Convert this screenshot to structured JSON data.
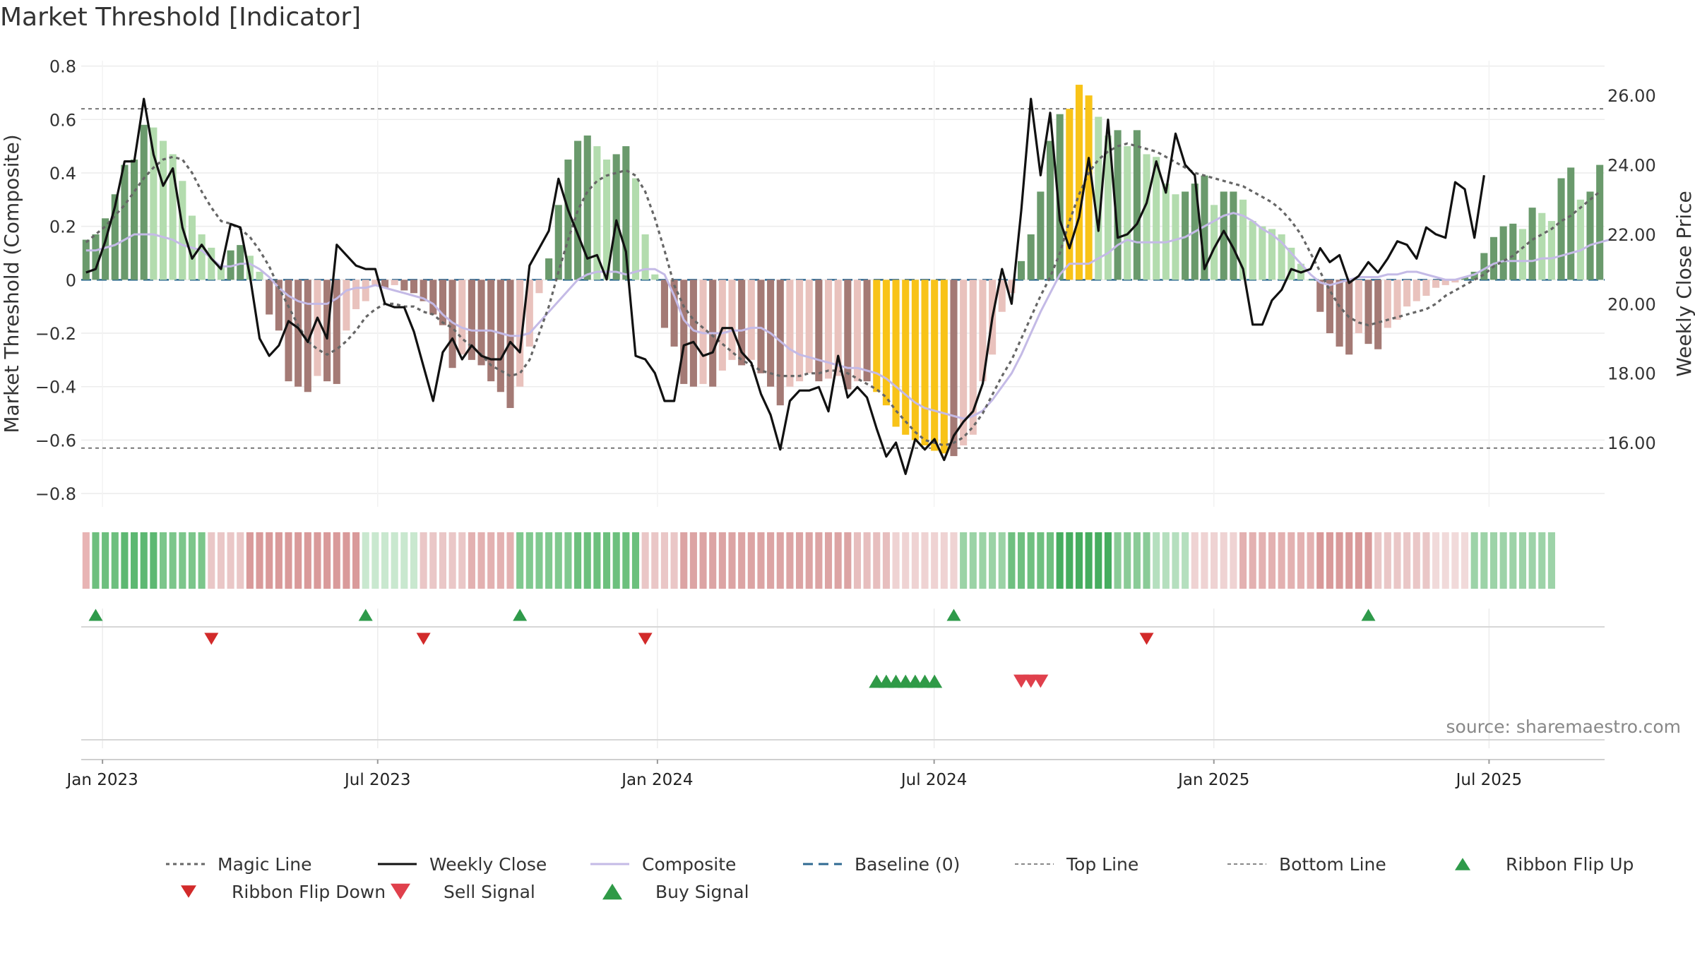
{
  "chart_data": {
    "type": "bar",
    "title": "Market Threshold [Indicator]",
    "ylabel_left": "Market Threshold (Composite)",
    "ylabel_right": "Weekly Close Price",
    "xlabel": "",
    "ylim_left": [
      -0.85,
      0.82
    ],
    "ylim_right": [
      14.15,
      27.0
    ],
    "yticks_left": [
      0.8,
      0.6,
      0.4,
      0.2,
      0,
      -0.2,
      -0.4,
      -0.6,
      -0.8
    ],
    "yticks_left_labels": [
      "0.8",
      "0.6",
      "0.4",
      "0.2",
      "0",
      "−0.2",
      "−0.4",
      "−0.6",
      "−0.8"
    ],
    "yticks_right": [
      26,
      24,
      22,
      20,
      18,
      16
    ],
    "yticks_right_labels": [
      "26.00",
      "24.00",
      "22.00",
      "20.00",
      "18.00",
      "16.00"
    ],
    "x_axis": {
      "start": "2022-12-18",
      "end": "2025-09-15"
    },
    "x_ticks": [
      {
        "date": "2023-01-01",
        "label": "Jan 2023"
      },
      {
        "date": "2023-07-01",
        "label": "Jul 2023"
      },
      {
        "date": "2024-01-01",
        "label": "Jan 2024"
      },
      {
        "date": "2024-07-01",
        "label": "Jul 2024"
      },
      {
        "date": "2025-01-01",
        "label": "Jan 2025"
      },
      {
        "date": "2025-07-01",
        "label": "Jul 2025"
      }
    ],
    "grid": true,
    "top_line": 0.64,
    "bottom_line": -0.63,
    "composite_bars": [
      0.15,
      0.17,
      0.23,
      0.32,
      0.43,
      0.45,
      0.58,
      0.57,
      0.52,
      0.47,
      0.37,
      0.24,
      0.17,
      0.12,
      0.05,
      0.11,
      0.13,
      0.09,
      0.03,
      -0.13,
      -0.19,
      -0.38,
      -0.4,
      -0.42,
      -0.36,
      -0.38,
      -0.39,
      -0.19,
      -0.11,
      -0.08,
      -0.02,
      -0.03,
      -0.02,
      -0.04,
      -0.05,
      -0.08,
      -0.13,
      -0.17,
      -0.33,
      -0.28,
      -0.3,
      -0.32,
      -0.38,
      -0.42,
      -0.48,
      -0.4,
      -0.25,
      -0.05,
      0.08,
      0.28,
      0.45,
      0.52,
      0.54,
      0.5,
      0.45,
      0.47,
      0.5,
      0.38,
      0.17,
      0.02,
      -0.18,
      -0.25,
      -0.39,
      -0.4,
      -0.39,
      -0.4,
      -0.34,
      -0.3,
      -0.32,
      -0.3,
      -0.35,
      -0.4,
      -0.47,
      -0.4,
      -0.38,
      -0.35,
      -0.38,
      -0.37,
      -0.36,
      -0.41,
      -0.38,
      -0.38,
      -0.42,
      -0.47,
      -0.55,
      -0.58,
      -0.6,
      -0.62,
      -0.64,
      -0.65,
      -0.66,
      -0.62,
      -0.58,
      -0.38,
      -0.28,
      -0.12,
      -0.05,
      0.07,
      0.17,
      0.33,
      0.52,
      0.62,
      0.64,
      0.73,
      0.69,
      0.61,
      0.54,
      0.56,
      0.5,
      0.56,
      0.47,
      0.46,
      0.36,
      0.32,
      0.33,
      0.36,
      0.39,
      0.28,
      0.33,
      0.33,
      0.3,
      0.22,
      0.2,
      0.19,
      0.17,
      0.12,
      0.06,
      0,
      -0.12,
      -0.2,
      -0.25,
      -0.28,
      -0.2,
      -0.24,
      -0.26,
      -0.18,
      -0.15,
      -0.1,
      -0.08,
      -0.06,
      -0.03,
      -0.02,
      -0.01,
      0.01,
      0.03,
      0.1,
      0.16,
      0.2,
      0.21,
      0.19,
      0.27,
      0.25,
      0.22,
      0.38,
      0.42,
      0.3,
      0.33,
      0.43
    ],
    "bar_highlights": [
      {
        "from": 82,
        "to": 89
      },
      {
        "from": 102,
        "to": 104
      }
    ],
    "series": [
      {
        "name": "Magic Line",
        "values": [
          0.14,
          0.17,
          0.2,
          0.24,
          0.28,
          0.33,
          0.38,
          0.42,
          0.45,
          0.46,
          0.45,
          0.4,
          0.33,
          0.27,
          0.22,
          0.21,
          0.19,
          0.16,
          0.11,
          0.05,
          -0.03,
          -0.1,
          -0.17,
          -0.23,
          -0.26,
          -0.28,
          -0.26,
          -0.23,
          -0.19,
          -0.14,
          -0.11,
          -0.09,
          -0.09,
          -0.1,
          -0.1,
          -0.12,
          -0.13,
          -0.16,
          -0.18,
          -0.22,
          -0.25,
          -0.28,
          -0.32,
          -0.34,
          -0.36,
          -0.35,
          -0.3,
          -0.2,
          -0.1,
          0.03,
          0.15,
          0.26,
          0.33,
          0.37,
          0.39,
          0.4,
          0.41,
          0.39,
          0.33,
          0.23,
          0.11,
          -0.02,
          -0.1,
          -0.15,
          -0.18,
          -0.21,
          -0.24,
          -0.27,
          -0.3,
          -0.32,
          -0.34,
          -0.35,
          -0.36,
          -0.36,
          -0.36,
          -0.35,
          -0.35,
          -0.34,
          -0.34,
          -0.35,
          -0.37,
          -0.39,
          -0.41,
          -0.44,
          -0.49,
          -0.53,
          -0.57,
          -0.6,
          -0.61,
          -0.62,
          -0.61,
          -0.59,
          -0.55,
          -0.5,
          -0.43,
          -0.36,
          -0.3,
          -0.22,
          -0.14,
          -0.06,
          0.01,
          0.1,
          0.22,
          0.32,
          0.4,
          0.45,
          0.48,
          0.5,
          0.51,
          0.5,
          0.49,
          0.48,
          0.46,
          0.44,
          0.42,
          0.4,
          0.39,
          0.38,
          0.37,
          0.36,
          0.35,
          0.33,
          0.31,
          0.29,
          0.26,
          0.22,
          0.17,
          0.1,
          0.03,
          -0.04,
          -0.1,
          -0.14,
          -0.16,
          -0.17,
          -0.16,
          -0.15,
          -0.14,
          -0.13,
          -0.12,
          -0.11,
          -0.09,
          -0.06,
          -0.04,
          -0.02,
          0,
          0.02,
          0.05,
          0.07,
          0.09,
          0.12,
          0.15,
          0.17,
          0.19,
          0.22,
          0.24,
          0.27,
          0.3,
          0.33
        ]
      },
      {
        "name": "Composite",
        "values": [
          0.11,
          0.11,
          0.12,
          0.13,
          0.15,
          0.17,
          0.17,
          0.17,
          0.16,
          0.15,
          0.13,
          0.12,
          0.11,
          0.08,
          0.05,
          0.05,
          0.06,
          0.06,
          0.04,
          0.01,
          -0.03,
          -0.06,
          -0.08,
          -0.09,
          -0.09,
          -0.09,
          -0.07,
          -0.04,
          -0.03,
          -0.03,
          -0.02,
          -0.03,
          -0.04,
          -0.05,
          -0.06,
          -0.07,
          -0.09,
          -0.13,
          -0.16,
          -0.18,
          -0.19,
          -0.19,
          -0.19,
          -0.2,
          -0.21,
          -0.21,
          -0.2,
          -0.16,
          -0.12,
          -0.08,
          -0.04,
          0,
          0.02,
          0.03,
          0.03,
          0.03,
          0.02,
          0.03,
          0.04,
          0.04,
          0.02,
          -0.06,
          -0.15,
          -0.19,
          -0.2,
          -0.2,
          -0.2,
          -0.19,
          -0.19,
          -0.18,
          -0.18,
          -0.2,
          -0.23,
          -0.26,
          -0.28,
          -0.29,
          -0.3,
          -0.31,
          -0.32,
          -0.33,
          -0.33,
          -0.34,
          -0.35,
          -0.37,
          -0.4,
          -0.43,
          -0.46,
          -0.48,
          -0.49,
          -0.5,
          -0.51,
          -0.52,
          -0.51,
          -0.49,
          -0.45,
          -0.4,
          -0.35,
          -0.28,
          -0.2,
          -0.12,
          -0.05,
          0.02,
          0.06,
          0.06,
          0.06,
          0.08,
          0.1,
          0.13,
          0.15,
          0.14,
          0.14,
          0.14,
          0.14,
          0.15,
          0.16,
          0.18,
          0.2,
          0.22,
          0.24,
          0.25,
          0.24,
          0.22,
          0.19,
          0.17,
          0.14,
          0.1,
          0.06,
          0.02,
          -0.01,
          -0.02,
          -0.01,
          0,
          0.01,
          0.01,
          0.01,
          0.02,
          0.02,
          0.03,
          0.03,
          0.02,
          0.01,
          0,
          0,
          0.01,
          0.02,
          0.04,
          0.06,
          0.07,
          0.07,
          0.07,
          0.07,
          0.08,
          0.08,
          0.09,
          0.1,
          0.11,
          0.13,
          0.14,
          0.15
        ]
      },
      {
        "name": "Weekly Close",
        "axis": "right",
        "values": [
          20.9,
          21.0,
          21.8,
          22.8,
          24.1,
          24.1,
          25.9,
          24.3,
          23.4,
          23.9,
          22.2,
          21.3,
          21.7,
          21.3,
          21.0,
          22.3,
          22.2,
          20.8,
          19.0,
          18.5,
          18.8,
          19.5,
          19.3,
          18.9,
          19.6,
          19.0,
          21.7,
          21.4,
          21.1,
          21.0,
          21.0,
          20.0,
          19.9,
          19.9,
          19.2,
          18.2,
          17.2,
          18.6,
          19.0,
          18.4,
          18.8,
          18.5,
          18.4,
          18.4,
          18.9,
          18.6,
          21.1,
          21.6,
          22.1,
          23.6,
          22.7,
          22.0,
          21.3,
          21.4,
          20.7,
          22.4,
          21.5,
          18.5,
          18.4,
          18.0,
          17.2,
          17.2,
          18.8,
          18.9,
          18.5,
          18.6,
          19.3,
          19.3,
          18.6,
          18.3,
          17.4,
          16.8,
          15.8,
          17.2,
          17.5,
          17.5,
          17.6,
          16.9,
          18.5,
          17.3,
          17.6,
          17.3,
          16.4,
          15.6,
          16.0,
          15.1,
          16.1,
          15.8,
          16.1,
          15.5,
          16.2,
          16.6,
          16.9,
          17.7,
          19.6,
          21.0,
          20.0,
          22.7,
          25.9,
          23.7,
          25.5,
          22.4,
          21.6,
          22.5,
          24.2,
          22.1,
          25.3,
          21.9,
          22.0,
          22.3,
          22.9,
          24.1,
          23.2,
          24.9,
          24.0,
          23.7,
          21.0,
          21.6,
          22.1,
          21.6,
          21.0,
          19.4,
          19.4,
          20.1,
          20.4,
          21.0,
          20.9,
          21.0,
          21.6,
          21.2,
          21.4,
          20.6,
          20.8,
          21.2,
          20.9,
          21.3,
          21.8,
          21.7,
          21.3,
          22.2,
          22.0,
          21.9,
          23.5,
          23.3,
          21.9,
          23.7
        ]
      }
    ],
    "ribbon": [
      {
        "from": 0,
        "to": 1,
        "color": "#e8b4b4"
      },
      {
        "from": 1,
        "to": 4,
        "color": "#6dbf7e"
      },
      {
        "from": 4,
        "to": 8,
        "color": "#5db872"
      },
      {
        "from": 8,
        "to": 13,
        "color": "#7cc68b"
      },
      {
        "from": 13,
        "to": 17,
        "color": "#eac7c7"
      },
      {
        "from": 17,
        "to": 29,
        "color": "#d99a9a"
      },
      {
        "from": 29,
        "to": 35,
        "color": "#c9e8cf"
      },
      {
        "from": 35,
        "to": 40,
        "color": "#eac7c7"
      },
      {
        "from": 40,
        "to": 45,
        "color": "#e3b1b1"
      },
      {
        "from": 45,
        "to": 51,
        "color": "#80c98f"
      },
      {
        "from": 51,
        "to": 58,
        "color": "#6cc07d"
      },
      {
        "from": 58,
        "to": 62,
        "color": "#eac7c7"
      },
      {
        "from": 62,
        "to": 80,
        "color": "#dca4a4"
      },
      {
        "from": 80,
        "to": 84,
        "color": "#e7bebe"
      },
      {
        "from": 84,
        "to": 91,
        "color": "#efd3d3"
      },
      {
        "from": 91,
        "to": 96,
        "color": "#9bd3a6"
      },
      {
        "from": 96,
        "to": 101,
        "color": "#6fc080"
      },
      {
        "from": 101,
        "to": 107,
        "color": "#46ad5f"
      },
      {
        "from": 107,
        "to": 111,
        "color": "#8acb97"
      },
      {
        "from": 111,
        "to": 115,
        "color": "#b5dfbe"
      },
      {
        "from": 115,
        "to": 120,
        "color": "#efd3d3"
      },
      {
        "from": 120,
        "to": 128,
        "color": "#e3b1b1"
      },
      {
        "from": 128,
        "to": 134,
        "color": "#d99a9a"
      },
      {
        "from": 134,
        "to": 140,
        "color": "#eac7c7"
      },
      {
        "from": 140,
        "to": 144,
        "color": "#f1dada"
      },
      {
        "from": 144,
        "to": 153,
        "color": "#9dd3a8"
      }
    ],
    "ribbon_flip_up": [
      1,
      29,
      45,
      90,
      133
    ],
    "ribbon_flip_down": [
      13,
      35,
      58,
      110
    ],
    "buy_signal": [
      82,
      83,
      84,
      85,
      86,
      87,
      88
    ],
    "sell_signal": [
      97,
      98,
      99
    ],
    "legend_position": "bottom",
    "legend": [
      {
        "name": "Magic Line",
        "style": "dotted"
      },
      {
        "name": "Weekly Close",
        "style": "solid"
      },
      {
        "name": "Composite",
        "style": "solid-light"
      },
      {
        "name": "Baseline (0)",
        "style": "dashed"
      },
      {
        "name": "Top Line",
        "style": "dotted-thin"
      },
      {
        "name": "Bottom Line",
        "style": "dotted-thin"
      },
      {
        "name": "Ribbon Flip Up",
        "style": "triangle-up"
      },
      {
        "name": "Ribbon Flip Down",
        "style": "triangle-down"
      },
      {
        "name": "Sell Signal",
        "style": "triangle-down-large"
      },
      {
        "name": "Buy Signal",
        "style": "triangle-up-large"
      }
    ],
    "annotation": "source: sharemaestro.com"
  },
  "colors": {
    "strong_green": "#6a9a6c",
    "light_green": "#b3dcae",
    "strong_red": "#a47a75",
    "light_red": "#e9c2bd",
    "highlight": "#f8c318",
    "weekly_close": "#111111",
    "composite": "#c4bae6",
    "magic_line": "#666666",
    "baseline": "#2f6a92",
    "ribbon_up": "#2e9a4a",
    "ribbon_down": "#d22a2a",
    "buy": "#2f9a47",
    "sell": "#e0404c"
  }
}
